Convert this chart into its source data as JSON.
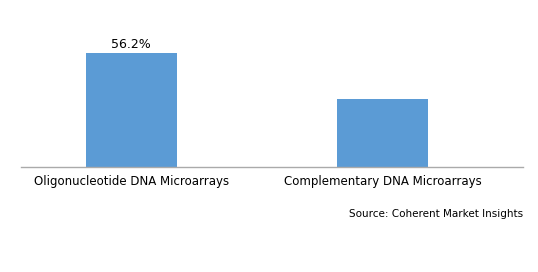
{
  "categories": [
    "Oligonucleotide DNA Microarrays",
    "Complementary DNA Microarrays"
  ],
  "values": [
    56.2,
    33.5
  ],
  "bar_color": "#5b9bd5",
  "bar_label": "56.2%",
  "source_text": "Source: Coherent Market Insights",
  "background_color": "#ffffff",
  "ylim": [
    0,
    75
  ],
  "bar_width": 0.18,
  "x_positions": [
    0.22,
    0.72
  ],
  "xlim": [
    0,
    1
  ],
  "label_fontsize": 8.5,
  "annotation_fontsize": 9,
  "source_fontsize": 7.5
}
